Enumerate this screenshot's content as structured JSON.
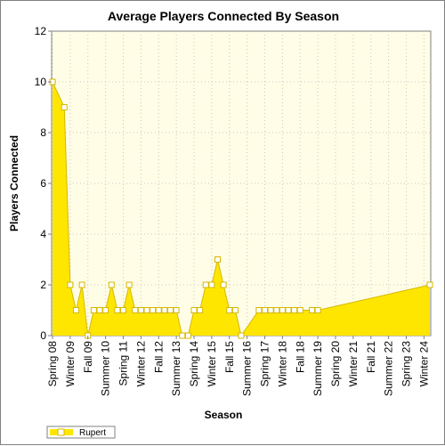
{
  "chart_data": {
    "type": "area",
    "title": "Average Players Connected By Season",
    "xlabel": "Season",
    "ylabel": "Players Connected",
    "ylim": [
      0,
      12
    ],
    "yticks": [
      0,
      2,
      4,
      6,
      8,
      10,
      12
    ],
    "grid": true,
    "legend_position": "bottom-left",
    "x_tick_labels": [
      "Spring 08",
      "Winter 09",
      "Fall 09",
      "Summer 10",
      "Spring 11",
      "Winter 12",
      "Fall 12",
      "Summer 13",
      "Spring 14",
      "Winter 15",
      "Fall 15",
      "Summer 16",
      "Spring 17",
      "Winter 18",
      "Fall 18",
      "Summer 19",
      "Spring 20",
      "Winter 21",
      "Fall 21",
      "Summer 22",
      "Spring 23",
      "Winter 24"
    ],
    "x_tick_index_step": 3,
    "series": [
      {
        "name": "Rupert",
        "color": "#ffe600",
        "line_color": "#d4b800",
        "values": [
          10,
          null,
          9,
          2,
          1,
          2,
          0,
          1,
          1,
          1,
          2,
          1,
          1,
          2,
          1,
          1,
          1,
          1,
          1,
          1,
          1,
          1,
          0,
          0,
          1,
          1,
          2,
          2,
          3,
          2,
          1,
          1,
          0,
          null,
          null,
          1,
          1,
          1,
          1,
          1,
          1,
          1,
          1,
          null,
          1,
          1,
          null,
          null,
          null,
          null,
          null,
          null,
          null,
          null,
          null,
          null,
          null,
          null,
          null,
          null,
          null,
          null,
          null,
          null,
          2
        ]
      }
    ]
  },
  "colors": {
    "plot_background": "#fffde6",
    "grid": "#c8c8c8",
    "marker_fill": "#ffffff"
  }
}
